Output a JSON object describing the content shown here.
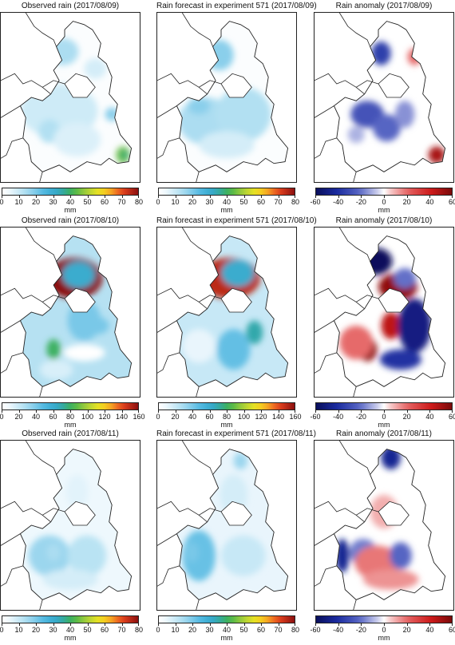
{
  "chart_data": [
    {
      "type": "heatmap",
      "title": "Observed rain (2017/08/09)",
      "kind": "obs",
      "day": 0,
      "colorbar": {
        "label": "mm",
        "range": [
          0,
          80
        ],
        "ticks": [
          0,
          10,
          20,
          30,
          40,
          50,
          60,
          70,
          80
        ],
        "colormap": "rain"
      },
      "field": {
        "background": 1,
        "blobs": [
          {
            "cx": 0.45,
            "cy": 0.23,
            "rx": 0.11,
            "ry": 0.08,
            "v": 14
          },
          {
            "cx": 0.68,
            "cy": 0.33,
            "rx": 0.08,
            "ry": 0.06,
            "v": 8
          },
          {
            "cx": 0.42,
            "cy": 0.58,
            "rx": 0.28,
            "ry": 0.16,
            "v": 9
          },
          {
            "cx": 0.35,
            "cy": 0.7,
            "rx": 0.08,
            "ry": 0.07,
            "v": 13
          },
          {
            "cx": 0.55,
            "cy": 0.75,
            "rx": 0.17,
            "ry": 0.1,
            "v": 7
          },
          {
            "cx": 0.8,
            "cy": 0.6,
            "rx": 0.05,
            "ry": 0.04,
            "v": 18
          },
          {
            "cx": 0.88,
            "cy": 0.84,
            "rx": 0.05,
            "ry": 0.05,
            "v": 45
          },
          {
            "cx": 0.89,
            "cy": 0.84,
            "rx": 0.025,
            "ry": 0.025,
            "v": 38
          }
        ]
      }
    },
    {
      "type": "heatmap",
      "title": "Rain forecast in experiment 571 (2017/08/09)",
      "kind": "fcst",
      "day": 0,
      "colorbar": {
        "label": "mm",
        "range": [
          0,
          80
        ],
        "ticks": [
          0,
          10,
          20,
          30,
          40,
          50,
          60,
          70,
          80
        ],
        "colormap": "rain"
      },
      "field": {
        "background": 1,
        "blobs": [
          {
            "cx": 0.45,
            "cy": 0.25,
            "rx": 0.1,
            "ry": 0.09,
            "v": 18
          },
          {
            "cx": 0.35,
            "cy": 0.64,
            "rx": 0.2,
            "ry": 0.14,
            "v": 14
          },
          {
            "cx": 0.62,
            "cy": 0.6,
            "rx": 0.2,
            "ry": 0.16,
            "v": 13
          },
          {
            "cx": 0.5,
            "cy": 0.78,
            "rx": 0.2,
            "ry": 0.08,
            "v": 8
          },
          {
            "cx": 0.3,
            "cy": 0.55,
            "rx": 0.08,
            "ry": 0.05,
            "v": 18
          }
        ]
      }
    },
    {
      "type": "heatmap",
      "title": "Rain anomaly (2017/08/09)",
      "kind": "anom",
      "day": 0,
      "colorbar": {
        "label": "mm",
        "range": [
          -60,
          60
        ],
        "ticks": [
          -60,
          -40,
          -20,
          0,
          20,
          40,
          60
        ],
        "colormap": "diverging"
      },
      "field": {
        "background": 0,
        "blobs": [
          {
            "cx": 0.48,
            "cy": 0.24,
            "rx": 0.07,
            "ry": 0.07,
            "v": -35
          },
          {
            "cx": 0.72,
            "cy": 0.26,
            "rx": 0.05,
            "ry": 0.05,
            "v": 20
          },
          {
            "cx": 0.38,
            "cy": 0.6,
            "rx": 0.12,
            "ry": 0.08,
            "v": -28
          },
          {
            "cx": 0.52,
            "cy": 0.68,
            "rx": 0.1,
            "ry": 0.08,
            "v": -22
          },
          {
            "cx": 0.65,
            "cy": 0.6,
            "rx": 0.07,
            "ry": 0.08,
            "v": -15
          },
          {
            "cx": 0.3,
            "cy": 0.72,
            "rx": 0.06,
            "ry": 0.05,
            "v": -10
          },
          {
            "cx": 0.88,
            "cy": 0.84,
            "rx": 0.06,
            "ry": 0.05,
            "v": 50
          }
        ]
      }
    },
    {
      "type": "heatmap",
      "title": "Observed rain (2017/08/10)",
      "kind": "obs",
      "day": 1,
      "colorbar": {
        "label": "mm",
        "range": [
          0,
          160
        ],
        "ticks": [
          0,
          20,
          40,
          60,
          80,
          100,
          120,
          140,
          160
        ],
        "colormap": "rain"
      },
      "field": {
        "background": 25,
        "blobs": [
          {
            "cx": 0.53,
            "cy": 0.3,
            "rx": 0.2,
            "ry": 0.12,
            "v": 160
          },
          {
            "cx": 0.56,
            "cy": 0.28,
            "rx": 0.12,
            "ry": 0.08,
            "v": 60
          },
          {
            "cx": 0.6,
            "cy": 0.55,
            "rx": 0.12,
            "ry": 0.12,
            "v": 40
          },
          {
            "cx": 0.7,
            "cy": 0.58,
            "rx": 0.08,
            "ry": 0.05,
            "v": 40
          },
          {
            "cx": 0.38,
            "cy": 0.72,
            "rx": 0.05,
            "ry": 0.06,
            "v": 80
          },
          {
            "cx": 0.6,
            "cy": 0.74,
            "rx": 0.15,
            "ry": 0.05,
            "v": -20
          },
          {
            "cx": 0.4,
            "cy": 0.84,
            "rx": 0.12,
            "ry": 0.06,
            "v": 15
          }
        ]
      }
    },
    {
      "type": "heatmap",
      "title": "Rain forecast in experiment 571 (2017/08/10)",
      "kind": "fcst",
      "day": 1,
      "colorbar": {
        "label": "mm",
        "range": [
          0,
          160
        ],
        "ticks": [
          0,
          20,
          40,
          60,
          80,
          100,
          120,
          140,
          160
        ],
        "colormap": "rain"
      },
      "field": {
        "background": 20,
        "blobs": [
          {
            "cx": 0.52,
            "cy": 0.3,
            "rx": 0.22,
            "ry": 0.12,
            "v": 150
          },
          {
            "cx": 0.58,
            "cy": 0.27,
            "rx": 0.12,
            "ry": 0.08,
            "v": 60
          },
          {
            "cx": 0.7,
            "cy": 0.62,
            "rx": 0.06,
            "ry": 0.07,
            "v": 70
          },
          {
            "cx": 0.55,
            "cy": 0.72,
            "rx": 0.12,
            "ry": 0.12,
            "v": 45
          },
          {
            "cx": 0.3,
            "cy": 0.7,
            "rx": 0.12,
            "ry": 0.1,
            "v": 10
          }
        ]
      }
    },
    {
      "type": "heatmap",
      "title": "Rain anomaly (2017/08/10)",
      "kind": "anom",
      "day": 1,
      "colorbar": {
        "label": "mm",
        "range": [
          -60,
          60
        ],
        "ticks": [
          -60,
          -40,
          -20,
          0,
          20,
          40,
          60
        ],
        "colormap": "diverging"
      },
      "field": {
        "background": 0,
        "blobs": [
          {
            "cx": 0.44,
            "cy": 0.2,
            "rx": 0.12,
            "ry": 0.08,
            "v": -60
          },
          {
            "cx": 0.6,
            "cy": 0.35,
            "rx": 0.14,
            "ry": 0.08,
            "v": 55
          },
          {
            "cx": 0.65,
            "cy": 0.3,
            "rx": 0.08,
            "ry": 0.06,
            "v": -20
          },
          {
            "cx": 0.55,
            "cy": 0.58,
            "rx": 0.07,
            "ry": 0.08,
            "v": 45
          },
          {
            "cx": 0.72,
            "cy": 0.58,
            "rx": 0.12,
            "ry": 0.16,
            "v": -50
          },
          {
            "cx": 0.38,
            "cy": 0.72,
            "rx": 0.07,
            "ry": 0.07,
            "v": 55
          },
          {
            "cx": 0.3,
            "cy": 0.68,
            "rx": 0.12,
            "ry": 0.1,
            "v": 20
          },
          {
            "cx": 0.62,
            "cy": 0.78,
            "rx": 0.15,
            "ry": 0.06,
            "v": -40
          }
        ]
      }
    },
    {
      "type": "heatmap",
      "title": "Observed rain (2017/08/11)",
      "kind": "obs",
      "day": 2,
      "colorbar": {
        "label": "mm",
        "range": [
          0,
          80
        ],
        "ticks": [
          0,
          10,
          20,
          30,
          40,
          50,
          60,
          70,
          80
        ],
        "colormap": "rain"
      },
      "field": {
        "background": 4,
        "blobs": [
          {
            "cx": 0.35,
            "cy": 0.68,
            "rx": 0.15,
            "ry": 0.12,
            "v": 16
          },
          {
            "cx": 0.38,
            "cy": 0.66,
            "rx": 0.05,
            "ry": 0.05,
            "v": 14
          },
          {
            "cx": 0.62,
            "cy": 0.68,
            "rx": 0.14,
            "ry": 0.12,
            "v": 12
          },
          {
            "cx": 0.5,
            "cy": 0.82,
            "rx": 0.2,
            "ry": 0.06,
            "v": 8
          },
          {
            "cx": 0.55,
            "cy": 0.3,
            "rx": 0.08,
            "ry": 0.1,
            "v": 6
          }
        ]
      }
    },
    {
      "type": "heatmap",
      "title": "Rain forecast in experiment 571 (2017/08/11)",
      "kind": "fcst",
      "day": 2,
      "colorbar": {
        "label": "mm",
        "range": [
          0,
          80
        ],
        "ticks": [
          0,
          10,
          20,
          30,
          40,
          50,
          60,
          70,
          80
        ],
        "colormap": "rain"
      },
      "field": {
        "background": 5,
        "blobs": [
          {
            "cx": 0.3,
            "cy": 0.68,
            "rx": 0.12,
            "ry": 0.15,
            "v": 22
          },
          {
            "cx": 0.25,
            "cy": 0.66,
            "rx": 0.05,
            "ry": 0.06,
            "v": 20
          },
          {
            "cx": 0.6,
            "cy": 0.12,
            "rx": 0.05,
            "ry": 0.05,
            "v": 16
          },
          {
            "cx": 0.55,
            "cy": 0.32,
            "rx": 0.1,
            "ry": 0.12,
            "v": 8
          },
          {
            "cx": 0.62,
            "cy": 0.68,
            "rx": 0.16,
            "ry": 0.12,
            "v": 10
          }
        ]
      }
    },
    {
      "type": "heatmap",
      "title": "Rain anomaly (2017/08/11)",
      "kind": "anom",
      "day": 2,
      "colorbar": {
        "label": "mm",
        "range": [
          -60,
          60
        ],
        "ticks": [
          -60,
          -40,
          -20,
          0,
          20,
          40,
          60
        ],
        "colormap": "diverging"
      },
      "field": {
        "background": 0,
        "blobs": [
          {
            "cx": 0.55,
            "cy": 0.1,
            "rx": 0.07,
            "ry": 0.07,
            "v": -45
          },
          {
            "cx": 0.2,
            "cy": 0.68,
            "rx": 0.05,
            "ry": 0.1,
            "v": -45
          },
          {
            "cx": 0.35,
            "cy": 0.66,
            "rx": 0.1,
            "ry": 0.08,
            "v": -18
          },
          {
            "cx": 0.45,
            "cy": 0.72,
            "rx": 0.16,
            "ry": 0.1,
            "v": 18
          },
          {
            "cx": 0.62,
            "cy": 0.68,
            "rx": 0.08,
            "ry": 0.08,
            "v": -22
          },
          {
            "cx": 0.55,
            "cy": 0.82,
            "rx": 0.2,
            "ry": 0.06,
            "v": 14
          },
          {
            "cx": 0.5,
            "cy": 0.42,
            "rx": 0.1,
            "ry": 0.1,
            "v": 10
          }
        ]
      }
    }
  ]
}
